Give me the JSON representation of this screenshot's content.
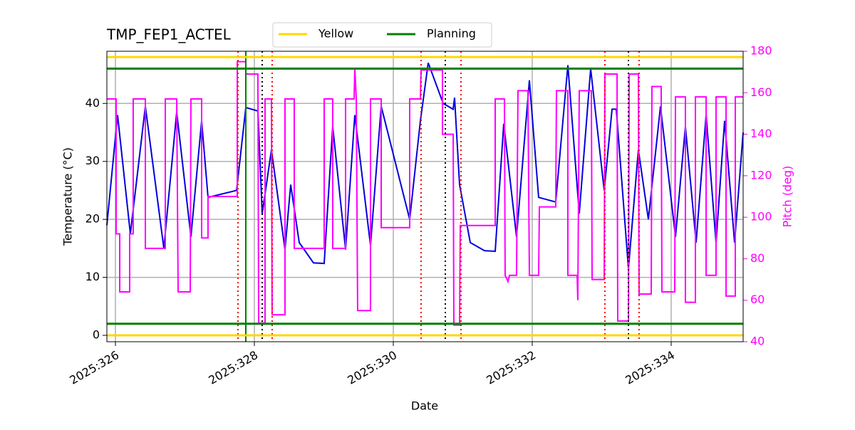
{
  "chart_data": {
    "type": "line",
    "title": "TMP_FEP1_ACTEL",
    "xlabel": "Date",
    "ylabel": "Temperature (°C)",
    "y2label": "Pitch (deg)",
    "xlim": [
      325.877,
      335.036
    ],
    "ylim": [
      -1.1,
      49
    ],
    "y2lim": [
      40,
      180
    ],
    "xticks": [
      {
        "value": 326,
        "label": "2025:326"
      },
      {
        "value": 328,
        "label": "2025:328"
      },
      {
        "value": 330,
        "label": "2025:330"
      },
      {
        "value": 332,
        "label": "2025:332"
      },
      {
        "value": 334,
        "label": "2025:334"
      }
    ],
    "yticks": [
      0,
      10,
      20,
      30,
      40
    ],
    "y2ticks": [
      40,
      60,
      80,
      100,
      120,
      140,
      160,
      180
    ],
    "grid": true,
    "series": [
      {
        "color": "#0000dd",
        "x": [
          325.877,
          326.031,
          326.215,
          326.431,
          326.697,
          326.882,
          327.087,
          327.241,
          327.333,
          327.744,
          327.877,
          328.051,
          328.113,
          328.246,
          328.441,
          328.523,
          328.646,
          328.851,
          329.005,
          329.128,
          329.313,
          329.446,
          329.672,
          329.826,
          330.236,
          330.39,
          330.503,
          330.718,
          330.862,
          330.882,
          330.954,
          331.108,
          331.313,
          331.467,
          331.59,
          331.774,
          331.959,
          332.092,
          332.338,
          332.513,
          332.677,
          332.841,
          333.036,
          333.149,
          333.21,
          333.385,
          333.528,
          333.672,
          333.846,
          334.062,
          334.205,
          334.359,
          334.503,
          334.646,
          334.769,
          334.913,
          335.036
        ],
        "values": [
          19,
          38,
          17.5,
          39.5,
          15,
          38.5,
          17,
          37,
          23.8,
          25,
          39.3,
          38.7,
          21,
          32,
          14.8,
          26,
          16,
          12.5,
          12.4,
          36,
          14.8,
          38,
          15.5,
          39.5,
          20,
          37,
          47,
          40,
          39,
          41,
          26,
          16,
          14.6,
          14.5,
          36.5,
          17,
          44,
          23.8,
          23,
          46.6,
          21,
          46,
          25,
          39,
          39,
          11.5,
          32,
          20,
          39.5,
          17,
          36,
          16,
          38,
          16,
          37,
          16,
          35
        ]
      },
      {
        "color": "#ff00ff",
        "axis": "y2",
        "x": [
          325.877,
          326.01,
          326.01,
          326.062,
          326.062,
          326.205,
          326.205,
          326.256,
          326.256,
          326.431,
          326.431,
          326.718,
          326.718,
          326.882,
          326.903,
          327.077,
          327.087,
          327.241,
          327.241,
          327.333,
          327.333,
          327.754,
          327.754,
          327.877,
          327.877,
          328.051,
          328.062,
          328.154,
          328.154,
          328.246,
          328.256,
          328.441,
          328.441,
          328.574,
          328.574,
          329.005,
          329.005,
          329.128,
          329.128,
          329.313,
          329.313,
          329.436,
          329.446,
          329.467,
          329.487,
          329.672,
          329.672,
          329.826,
          329.826,
          330.236,
          330.236,
          330.39,
          330.4,
          330.708,
          330.708,
          330.862,
          330.872,
          330.954,
          330.964,
          331.467,
          331.467,
          331.6,
          331.61,
          331.651,
          331.672,
          331.774,
          331.795,
          331.938,
          331.959,
          332.092,
          332.103,
          332.338,
          332.349,
          332.513,
          332.513,
          332.646,
          332.656,
          332.677,
          332.851,
          332.862,
          333.036,
          333.046,
          333.221,
          333.231,
          333.385,
          333.395,
          333.528,
          333.538,
          333.713,
          333.723,
          333.856,
          333.867,
          334.051,
          334.062,
          334.205,
          334.205,
          334.349,
          334.349,
          334.503,
          334.503,
          334.646,
          334.646,
          334.79,
          334.79,
          334.923,
          334.923,
          335.036
        ],
        "values": [
          157,
          157,
          92,
          92,
          64,
          64,
          92,
          92,
          157,
          157,
          85,
          85,
          157,
          157,
          64,
          64,
          157,
          157,
          90,
          90,
          110,
          110,
          175,
          175,
          169,
          169,
          49,
          49,
          157,
          157,
          53,
          53,
          157,
          157,
          85,
          85,
          157,
          157,
          85,
          85,
          157,
          157,
          172,
          157,
          55,
          55,
          157,
          157,
          95,
          95,
          157,
          157,
          171,
          171,
          140,
          140,
          48,
          48,
          96,
          96,
          157,
          157,
          72,
          69,
          72,
          72,
          161,
          161,
          72,
          72,
          105,
          105,
          161,
          161,
          72,
          72,
          60,
          161,
          161,
          70,
          70,
          169,
          169,
          50,
          50,
          169,
          169,
          63,
          63,
          163,
          163,
          64,
          64,
          158,
          158,
          59,
          59,
          158,
          158,
          72,
          72,
          158,
          158,
          62,
          62,
          158,
          158
        ]
      }
    ],
    "reference_lines": [
      {
        "name": "Yellow",
        "color": "#ffd700",
        "values": [
          48,
          0
        ]
      },
      {
        "name": "Planning",
        "color": "#008000",
        "values": [
          46,
          2
        ]
      }
    ],
    "vlines": [
      {
        "color": "#ff0000",
        "style": "dotted",
        "x": [
          327.764,
          328.256,
          330.4,
          330.974,
          333.046,
          333.538
        ]
      },
      {
        "color": "#000000",
        "style": "dotted",
        "x": [
          328.113,
          330.749,
          333.385
        ]
      },
      {
        "color": "#008000",
        "style": "solid",
        "x": [
          327.877
        ]
      }
    ]
  }
}
